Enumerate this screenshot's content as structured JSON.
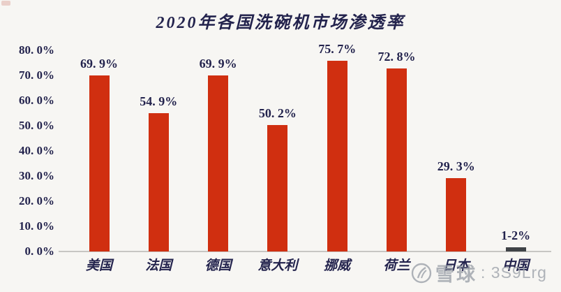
{
  "title": "2020年各国洗碗机市场渗透率",
  "chart_data": {
    "type": "bar",
    "title": "2020年各国洗碗机市场渗透率",
    "categories": [
      "美国",
      "法国",
      "德国",
      "意大利",
      "挪威",
      "荷兰",
      "日本",
      "中国"
    ],
    "values": [
      69.9,
      54.9,
      69.9,
      50.2,
      75.7,
      72.8,
      29.3,
      1.7
    ],
    "value_labels": [
      "69. 9%",
      "54. 9%",
      "69. 9%",
      "50. 2%",
      "75. 7%",
      "72. 8%",
      "29. 3%",
      "1-2%"
    ],
    "bar_colors": [
      "#d02f10",
      "#d02f10",
      "#d02f10",
      "#d02f10",
      "#d02f10",
      "#d02f10",
      "#d02f10",
      "#3f4347"
    ],
    "ytick_labels": [
      "0. 0%",
      "10. 0%",
      "20. 0%",
      "30. 0%",
      "40. 0%",
      "50. 0%",
      "60. 0%",
      "70. 0%",
      "80. 0%"
    ],
    "ylim": [
      0,
      80
    ],
    "xlabel": "",
    "ylabel": "",
    "grid": false,
    "legend": null
  },
  "watermark": {
    "logo": "xueqiu-snowball-logo",
    "text": "雪球",
    "id_text": ": 3S9Lrg"
  },
  "colors": {
    "bar": "#d02f10",
    "bar_china": "#3f4347",
    "text": "#23234d",
    "axis_line": "#c7c6c3",
    "background": "#f7f6f3",
    "watermark": "#9aa0a8"
  }
}
